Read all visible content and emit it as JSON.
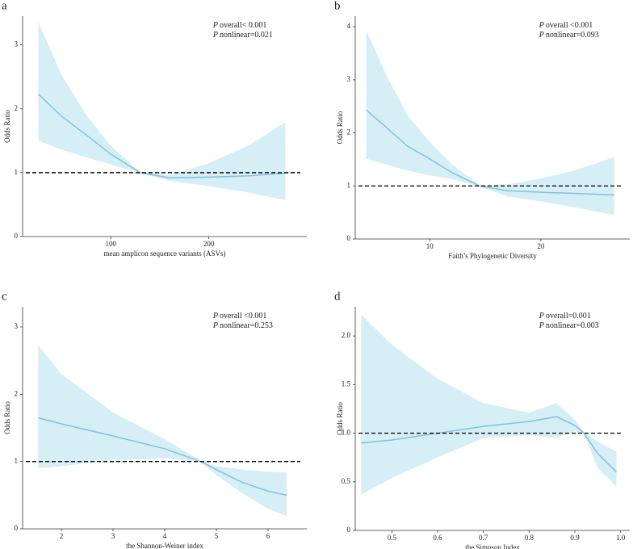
{
  "chart_data": [
    {
      "type": "line",
      "label": "a",
      "xlabel": "mean amplicon sequence variants (ASVs)",
      "ylabel": "Odds Ratio",
      "annotations": [
        {
          "symbol": "P",
          "text": "overall< 0.001"
        },
        {
          "symbol": "P",
          "text": "nonlinear=0.021"
        }
      ],
      "x": [
        26,
        50,
        75,
        100,
        130,
        160,
        200,
        240,
        278
      ],
      "values": [
        2.23,
        1.88,
        1.59,
        1.29,
        1.0,
        0.92,
        0.93,
        0.95,
        0.99
      ],
      "ci_lower": [
        1.5,
        1.36,
        1.24,
        1.13,
        0.99,
        0.87,
        0.79,
        0.69,
        0.57
      ],
      "ci_upper": [
        3.36,
        2.52,
        1.9,
        1.42,
        1.01,
        0.96,
        1.15,
        1.42,
        1.79
      ],
      "color": "#82c3da",
      "band_color": "#d6eef5",
      "reference_line": 1,
      "xlim": [
        10,
        300
      ],
      "xticks": [
        100,
        200
      ],
      "ylim": [
        0,
        3.45
      ],
      "yticks": [
        0,
        1,
        2,
        3
      ]
    },
    {
      "type": "line",
      "label": "b",
      "xlabel": "Faith’s Phylogenetic Diversity",
      "ylabel": "Odds Ratio",
      "annotations": [
        {
          "symbol": "P",
          "text": "overall <0.001"
        },
        {
          "symbol": "P",
          "text": "nonlinear=0.093"
        }
      ],
      "x": [
        4.3,
        6,
        8,
        10,
        12,
        14.5,
        17,
        20,
        23,
        26.6
      ],
      "values": [
        2.43,
        2.12,
        1.75,
        1.51,
        1.25,
        1.0,
        0.91,
        0.88,
        0.86,
        0.83
      ],
      "ci_lower": [
        1.51,
        1.41,
        1.29,
        1.2,
        1.13,
        0.99,
        0.8,
        0.71,
        0.6,
        0.45
      ],
      "ci_upper": [
        3.93,
        3.13,
        2.33,
        1.83,
        1.41,
        1.01,
        1.03,
        1.14,
        1.29,
        1.54
      ],
      "color": "#82c3da",
      "band_color": "#d6eef5",
      "reference_line": 1,
      "xlim": [
        3.3,
        28
      ],
      "xticks": [
        10,
        20
      ],
      "ylim": [
        0,
        4.2
      ],
      "yticks": [
        0,
        1,
        2,
        3,
        4
      ]
    },
    {
      "type": "line",
      "label": "c",
      "xlabel": "the Shannon-Weiner index",
      "ylabel": "Odds Ratio",
      "annotations": [
        {
          "symbol": "P",
          "text": "overall <0.001"
        },
        {
          "symbol": "P",
          "text": "nonlinear=0.253"
        }
      ],
      "x": [
        1.55,
        2,
        3,
        4,
        4.7,
        5,
        5.5,
        6,
        6.36
      ],
      "values": [
        1.65,
        1.56,
        1.38,
        1.19,
        1.0,
        0.88,
        0.69,
        0.56,
        0.5
      ],
      "ci_lower": [
        0.9,
        0.93,
        1.02,
        1.05,
        0.99,
        0.8,
        0.53,
        0.3,
        0.19
      ],
      "ci_upper": [
        2.73,
        2.3,
        1.73,
        1.33,
        1.01,
        0.93,
        0.88,
        0.85,
        0.84
      ],
      "color": "#82c3da",
      "band_color": "#d6eef5",
      "reference_line": 1,
      "xlim": [
        1.25,
        6.75
      ],
      "xticks": [
        2,
        3,
        4,
        5,
        6
      ],
      "ylim": [
        0,
        3.3
      ],
      "yticks": [
        0,
        1,
        2,
        3
      ]
    },
    {
      "type": "line",
      "label": "d",
      "xlabel": "the Simpson Index",
      "ylabel": "Odds Ratio",
      "annotations": [
        {
          "symbol": "P",
          "text": "overall=0.001"
        },
        {
          "symbol": "P",
          "text": "nonlinear=0.003"
        }
      ],
      "x": [
        0.433,
        0.5,
        0.6,
        0.7,
        0.8,
        0.86,
        0.9,
        0.92,
        0.95,
        0.991
      ],
      "values": [
        0.9,
        0.93,
        1.0,
        1.07,
        1.12,
        1.17,
        1.08,
        1.0,
        0.79,
        0.6
      ],
      "ci_lower": [
        0.37,
        0.54,
        0.75,
        0.95,
        0.98,
        0.95,
        1.02,
        0.99,
        0.64,
        0.45
      ],
      "ci_upper": [
        2.22,
        1.91,
        1.56,
        1.31,
        1.21,
        1.31,
        1.14,
        1.01,
        0.91,
        0.81
      ],
      "color": "#82c3da",
      "band_color": "#d6eef5",
      "reference_line": 1,
      "xlim": [
        0.42,
        1.02
      ],
      "xticks": [
        0.5,
        0.6,
        0.7,
        0.8,
        0.9,
        {
          "value": 1,
          "label": "1.0"
        }
      ],
      "ylim": [
        0,
        2.3
      ],
      "yticks": [
        0,
        0.5,
        {
          "value": 1,
          "label": "1.0"
        },
        {
          "value": 1.5,
          "label": "1.5"
        },
        {
          "value": 2,
          "label": "2.0"
        }
      ]
    }
  ]
}
